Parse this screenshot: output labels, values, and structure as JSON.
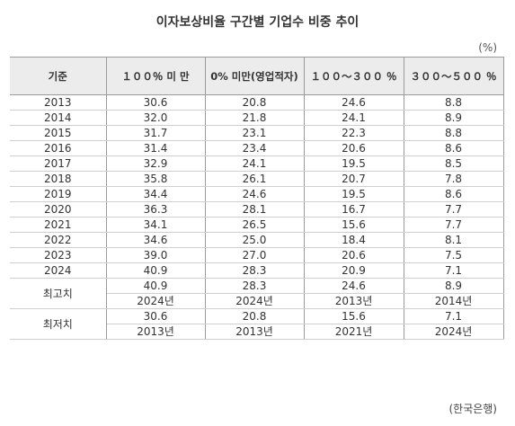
{
  "title": "이자보상비율 구간별 기업수 비중 추이",
  "unit": "(%)",
  "headers": [
    "기준",
    "１００％ 미 만",
    "0% 미만(영업적자)",
    "１００～３００ ％",
    "３００～５００ ％"
  ],
  "rows": [
    [
      "2013",
      "30.6",
      "20.8",
      "24.6",
      "8.8"
    ],
    [
      "2014",
      "32.0",
      "21.8",
      "24.1",
      "8.9"
    ],
    [
      "2015",
      "31.7",
      "23.1",
      "22.3",
      "8.8"
    ],
    [
      "2016",
      "31.4",
      "23.4",
      "20.6",
      "8.6"
    ],
    [
      "2017",
      "32.9",
      "24.1",
      "19.5",
      "8.5"
    ],
    [
      "2018",
      "35.8",
      "26.1",
      "20.7",
      "7.8"
    ],
    [
      "2019",
      "34.4",
      "24.6",
      "19.5",
      "8.6"
    ],
    [
      "2020",
      "36.3",
      "28.1",
      "16.7",
      "7.7"
    ],
    [
      "2021",
      "34.1",
      "26.5",
      "15.6",
      "7.7"
    ],
    [
      "2022",
      "34.6",
      "25.0",
      "18.4",
      "8.1"
    ],
    [
      "2023",
      "39.0",
      "27.0",
      "20.6",
      "7.5"
    ],
    [
      "2024",
      "40.9",
      "28.3",
      "20.9",
      "7.1"
    ]
  ],
  "summary": [
    {
      "label": "최고치",
      "values": [
        "40.9",
        "28.3",
        "24.6",
        "8.9"
      ],
      "years": [
        "2024년",
        "2024년",
        "2013년",
        "2014년"
      ]
    },
    {
      "label": "최저치",
      "values": [
        "30.6",
        "20.8",
        "15.6",
        "7.1"
      ],
      "years": [
        "2013년",
        "2013년",
        "2021년",
        "2024년"
      ]
    }
  ],
  "source": "(한국은행)"
}
